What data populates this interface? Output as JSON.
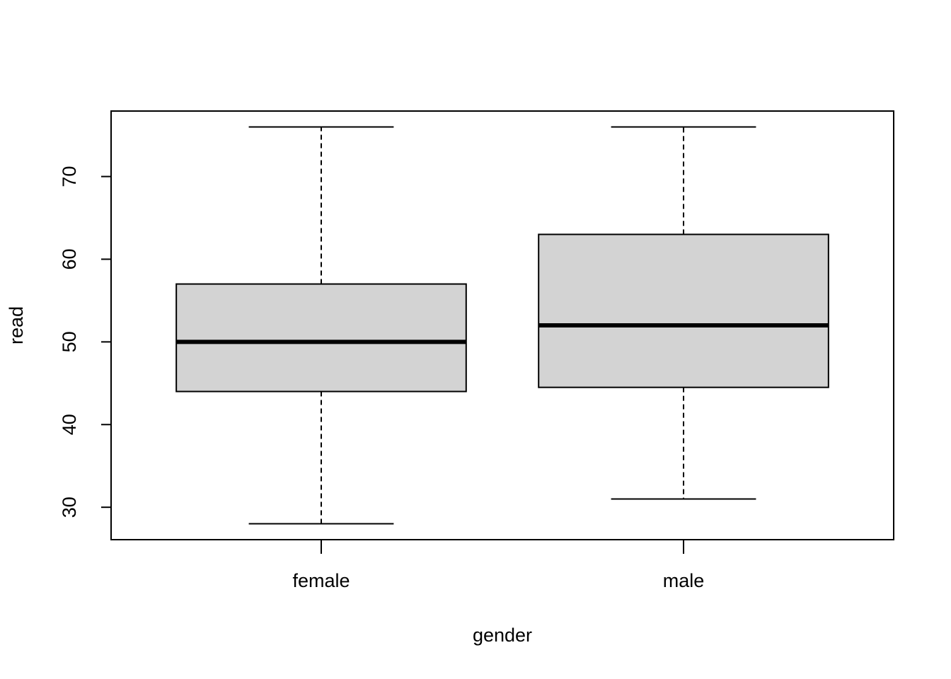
{
  "chart_data": {
    "type": "box",
    "xlabel": "gender",
    "ylabel": "read",
    "categories": [
      "female",
      "male"
    ],
    "boxes": [
      {
        "min": 28,
        "q1": 44,
        "median": 50,
        "q3": 57,
        "max": 76
      },
      {
        "min": 31,
        "q1": 44.5,
        "median": 52,
        "q3": 63,
        "max": 76
      }
    ],
    "color": "#d3d3d3",
    "ylim": [
      26.08,
      77.92
    ],
    "yticks": [
      30,
      40,
      50,
      60,
      70
    ]
  }
}
